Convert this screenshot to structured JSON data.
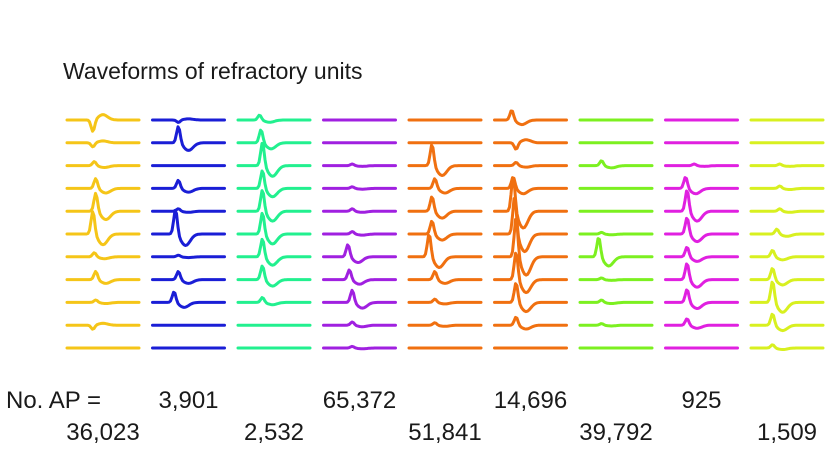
{
  "chart_data": {
    "type": "line",
    "title": "Waveforms of refractory units",
    "count_prefix": "No. AP =",
    "channels_per_unit": 11,
    "units": [
      {
        "count": "36,023",
        "color": "#F5C518",
        "channels": [
          {
            "amplitude": 1.4,
            "sign": 1,
            "trough": 0.36
          },
          {
            "amplitude": 0.5,
            "sign": 1,
            "trough": 0.36
          },
          {
            "amplitude": 0.5,
            "sign": -1,
            "trough": 0.38
          },
          {
            "amplitude": 1.2,
            "sign": -1,
            "trough": 0.4
          },
          {
            "amplitude": 2.2,
            "sign": -1,
            "trough": 0.4
          },
          {
            "amplitude": 2.8,
            "sign": -1,
            "trough": 0.36
          },
          {
            "amplitude": 0.5,
            "sign": -1,
            "trough": 0.38
          },
          {
            "amplitude": 1.0,
            "sign": -1,
            "trough": 0.4
          },
          {
            "amplitude": 0.3,
            "sign": -1,
            "trough": 0.4
          },
          {
            "amplitude": 0.5,
            "sign": 1,
            "trough": 0.36
          },
          {
            "amplitude": 0.0,
            "sign": 1,
            "trough": 0.4
          }
        ]
      },
      {
        "count": "3,901",
        "color": "#1A1ED6",
        "channels": [
          {
            "amplitude": 0.3,
            "sign": 1,
            "trough": 0.36
          },
          {
            "amplitude": 2.0,
            "sign": -1,
            "trough": 0.36
          },
          {
            "amplitude": 0.0,
            "sign": 1,
            "trough": 0.4
          },
          {
            "amplitude": 1.0,
            "sign": -1,
            "trough": 0.36
          },
          {
            "amplitude": 0.3,
            "sign": -1,
            "trough": 0.36
          },
          {
            "amplitude": 3.0,
            "sign": -1,
            "trough": 0.32
          },
          {
            "amplitude": 0.2,
            "sign": -1,
            "trough": 0.36
          },
          {
            "amplitude": 1.0,
            "sign": -1,
            "trough": 0.36
          },
          {
            "amplitude": 1.3,
            "sign": -1,
            "trough": 0.3
          },
          {
            "amplitude": 0.0,
            "sign": 1,
            "trough": 0.4
          },
          {
            "amplitude": 0.0,
            "sign": 1,
            "trough": 0.4
          }
        ]
      },
      {
        "count": "2,532",
        "color": "#22F08F",
        "channels": [
          {
            "amplitude": 0.6,
            "sign": -1,
            "trough": 0.3
          },
          {
            "amplitude": 1.6,
            "sign": -1,
            "trough": 0.32
          },
          {
            "amplitude": 2.8,
            "sign": -1,
            "trough": 0.34
          },
          {
            "amplitude": 2.2,
            "sign": -1,
            "trough": 0.34
          },
          {
            "amplitude": 2.6,
            "sign": -1,
            "trough": 0.34
          },
          {
            "amplitude": 2.6,
            "sign": -1,
            "trough": 0.34
          },
          {
            "amplitude": 2.2,
            "sign": -1,
            "trough": 0.34
          },
          {
            "amplitude": 1.7,
            "sign": -1,
            "trough": 0.34
          },
          {
            "amplitude": 0.6,
            "sign": -1,
            "trough": 0.34
          },
          {
            "amplitude": 0.0,
            "sign": 1,
            "trough": 0.4
          },
          {
            "amplitude": 0.0,
            "sign": 1,
            "trough": 0.4
          }
        ]
      },
      {
        "count": "65,372",
        "color": "#A020E0",
        "channels": [
          {
            "amplitude": 0.0,
            "sign": 1,
            "trough": 0.4
          },
          {
            "amplitude": 0.0,
            "sign": 1,
            "trough": 0.4
          },
          {
            "amplitude": 0.2,
            "sign": -1,
            "trough": 0.4
          },
          {
            "amplitude": 0.2,
            "sign": -1,
            "trough": 0.4
          },
          {
            "amplitude": 0.3,
            "sign": -1,
            "trough": 0.4
          },
          {
            "amplitude": 0.3,
            "sign": -1,
            "trough": 0.4
          },
          {
            "amplitude": 1.5,
            "sign": -1,
            "trough": 0.34
          },
          {
            "amplitude": 1.2,
            "sign": -1,
            "trough": 0.36
          },
          {
            "amplitude": 1.5,
            "sign": -1,
            "trough": 0.4
          },
          {
            "amplitude": 0.4,
            "sign": -1,
            "trough": 0.4
          },
          {
            "amplitude": 0.2,
            "sign": -1,
            "trough": 0.4
          }
        ]
      },
      {
        "count": "51,841",
        "color": "#F07010",
        "channels": [
          {
            "amplitude": 0.0,
            "sign": 1,
            "trough": 0.4
          },
          {
            "amplitude": 0.0,
            "sign": 1,
            "trough": 0.4
          },
          {
            "amplitude": 2.6,
            "sign": -1,
            "trough": 0.32
          },
          {
            "amplitude": 1.2,
            "sign": -1,
            "trough": 0.36
          },
          {
            "amplitude": 1.8,
            "sign": -1,
            "trough": 0.32
          },
          {
            "amplitude": 1.6,
            "sign": -1,
            "trough": 0.32
          },
          {
            "amplitude": 2.8,
            "sign": -1,
            "trough": 0.28
          },
          {
            "amplitude": 1.0,
            "sign": -1,
            "trough": 0.36
          },
          {
            "amplitude": 0.4,
            "sign": -1,
            "trough": 0.36
          },
          {
            "amplitude": 0.3,
            "sign": -1,
            "trough": 0.36
          },
          {
            "amplitude": 0.0,
            "sign": 1,
            "trough": 0.4
          }
        ]
      },
      {
        "count": "14,696",
        "color": "#F07010",
        "channels": [
          {
            "amplitude": 1.2,
            "sign": -1,
            "trough": 0.24
          },
          {
            "amplitude": 0.8,
            "sign": 1,
            "trough": 0.3
          },
          {
            "amplitude": 0.4,
            "sign": -1,
            "trough": 0.3
          },
          {
            "amplitude": 1.4,
            "sign": -1,
            "trough": 0.26
          },
          {
            "amplitude": 4.4,
            "sign": -1,
            "trough": 0.26
          },
          {
            "amplitude": 4.6,
            "sign": -1,
            "trough": 0.28
          },
          {
            "amplitude": 4.8,
            "sign": -1,
            "trough": 0.3
          },
          {
            "amplitude": 3.4,
            "sign": -1,
            "trough": 0.3
          },
          {
            "amplitude": 2.4,
            "sign": -1,
            "trough": 0.3
          },
          {
            "amplitude": 1.0,
            "sign": -1,
            "trough": 0.3
          },
          {
            "amplitude": 0.0,
            "sign": 1,
            "trough": 0.4
          }
        ]
      },
      {
        "count": "39,792",
        "color": "#7CF020",
        "channels": [
          {
            "amplitude": 0.0,
            "sign": 1,
            "trough": 0.4
          },
          {
            "amplitude": 0.0,
            "sign": 1,
            "trough": 0.4
          },
          {
            "amplitude": 0.6,
            "sign": -1,
            "trough": 0.3
          },
          {
            "amplitude": 0.0,
            "sign": 1,
            "trough": 0.4
          },
          {
            "amplitude": 0.0,
            "sign": 1,
            "trough": 0.4
          },
          {
            "amplitude": 0.2,
            "sign": -1,
            "trough": 0.3
          },
          {
            "amplitude": 2.4,
            "sign": -1,
            "trough": 0.26
          },
          {
            "amplitude": 0.2,
            "sign": -1,
            "trough": 0.3
          },
          {
            "amplitude": 0.3,
            "sign": -1,
            "trough": 0.3
          },
          {
            "amplitude": 0.2,
            "sign": -1,
            "trough": 0.3
          },
          {
            "amplitude": 0.0,
            "sign": 1,
            "trough": 0.4
          }
        ]
      },
      {
        "count": "925",
        "color": "#E020E0",
        "channels": [
          {
            "amplitude": 0.0,
            "sign": 1,
            "trough": 0.4
          },
          {
            "amplitude": 0.0,
            "sign": 1,
            "trough": 0.4
          },
          {
            "amplitude": 0.2,
            "sign": -1,
            "trough": 0.4
          },
          {
            "amplitude": 1.4,
            "sign": -1,
            "trough": 0.28
          },
          {
            "amplitude": 2.6,
            "sign": -1,
            "trough": 0.3
          },
          {
            "amplitude": 2.0,
            "sign": -1,
            "trough": 0.3
          },
          {
            "amplitude": 1.2,
            "sign": -1,
            "trough": 0.3
          },
          {
            "amplitude": 2.0,
            "sign": -1,
            "trough": 0.3
          },
          {
            "amplitude": 1.6,
            "sign": -1,
            "trough": 0.3
          },
          {
            "amplitude": 0.8,
            "sign": -1,
            "trough": 0.3
          },
          {
            "amplitude": 0.0,
            "sign": 1,
            "trough": 0.4
          }
        ]
      },
      {
        "count": "1,509",
        "color": "#D8F020",
        "channels": [
          {
            "amplitude": 0.0,
            "sign": 1,
            "trough": 0.4
          },
          {
            "amplitude": 0.0,
            "sign": 1,
            "trough": 0.4
          },
          {
            "amplitude": 0.2,
            "sign": -1,
            "trough": 0.4
          },
          {
            "amplitude": 0.3,
            "sign": -1,
            "trough": 0.4
          },
          {
            "amplitude": 0.3,
            "sign": -1,
            "trough": 0.4
          },
          {
            "amplitude": 0.6,
            "sign": -1,
            "trough": 0.36
          },
          {
            "amplitude": 0.8,
            "sign": -1,
            "trough": 0.3
          },
          {
            "amplitude": 1.4,
            "sign": -1,
            "trough": 0.3
          },
          {
            "amplitude": 2.6,
            "sign": -1,
            "trough": 0.3
          },
          {
            "amplitude": 1.4,
            "sign": -1,
            "trough": 0.3
          },
          {
            "amplitude": 0.4,
            "sign": -1,
            "trough": 0.3
          }
        ]
      }
    ]
  }
}
